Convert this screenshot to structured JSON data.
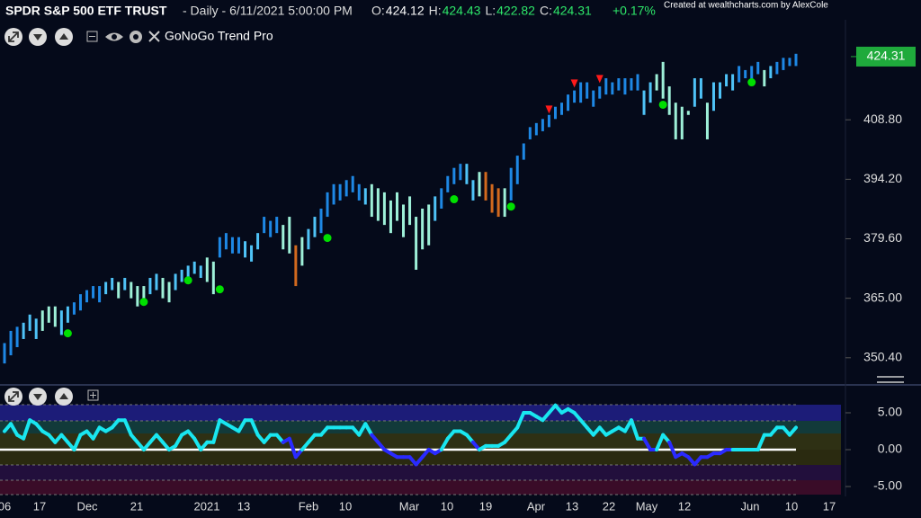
{
  "header": {
    "symbol": "SPDR S&P 500 ETF TRUST",
    "info": "- Daily - 6/11/2021 5:00:00 PM",
    "ohlc": [
      {
        "label": "O:",
        "value": 424.12
      },
      {
        "label": "H:",
        "value": 424.43
      },
      {
        "label": "L:",
        "value": 422.82
      },
      {
        "label": "C:",
        "value": 424.31
      }
    ],
    "change": "+0.17%",
    "watermark": "Created at wealthcharts.com by AlexCole",
    "indicator": "GoNoGo Trend Pro"
  },
  "chart_data": [
    {
      "type": "range_bar",
      "highs": [
        354,
        357,
        358,
        359,
        361,
        360,
        362,
        363,
        363,
        362,
        363,
        364,
        366,
        367,
        368,
        368,
        369,
        370,
        369,
        370,
        369,
        368,
        368,
        370,
        371,
        370,
        369,
        371,
        372,
        373,
        374,
        373,
        375,
        374,
        380,
        381,
        380,
        380,
        379,
        378,
        381,
        385,
        384,
        385,
        383,
        385,
        378,
        380,
        382,
        385,
        387,
        391,
        393,
        393,
        394,
        395,
        393,
        392,
        393,
        392,
        391,
        389,
        391,
        388,
        390,
        385,
        387,
        388,
        390,
        392,
        395,
        397,
        398,
        398,
        394,
        396,
        396,
        393,
        392,
        392,
        397,
        400,
        403,
        407,
        408,
        409,
        410,
        412,
        413,
        415,
        416,
        418,
        418,
        416,
        417,
        419,
        418,
        419,
        419,
        419,
        420,
        416,
        418,
        420,
        423,
        417,
        413,
        412,
        411,
        419,
        419,
        413,
        418,
        418,
        420,
        420,
        422,
        421,
        422,
        423,
        421,
        422,
        423,
        424,
        424,
        425
      ],
      "lows": [
        349,
        351,
        353,
        355,
        357,
        355,
        357,
        359,
        358,
        356,
        359,
        361,
        362,
        364,
        365,
        364,
        366,
        367,
        365,
        367,
        365,
        363,
        364,
        366,
        367,
        365,
        364,
        367,
        369,
        369,
        371,
        370,
        369,
        366,
        375,
        377,
        376,
        376,
        375,
        374,
        377,
        381,
        380,
        381,
        377,
        376,
        368,
        373,
        377,
        380,
        381,
        385,
        388,
        389,
        390,
        391,
        389,
        388,
        385,
        384,
        383,
        381,
        384,
        380,
        383,
        372,
        377,
        378,
        384,
        387,
        391,
        393,
        394,
        393,
        389,
        390,
        389,
        386,
        385,
        385,
        389,
        393,
        399,
        404,
        405,
        406,
        407,
        409,
        410,
        411,
        413,
        413,
        414,
        412,
        414,
        415,
        415,
        416,
        415,
        416,
        416,
        410,
        413,
        416,
        414,
        410,
        404,
        404,
        410,
        412,
        414,
        404,
        411,
        414,
        417,
        416,
        418,
        419,
        418,
        420,
        417,
        419,
        420,
        421,
        422,
        422
      ],
      "colors": [
        "#1e88e5",
        "#1e88e5",
        "#1e88e5",
        "#4fc3f7",
        "#4fc3f7",
        "#4fc3f7",
        "#9ef0d8",
        "#9ef0d8",
        "#9ef0d8",
        "#4fc3f7",
        "#4fc3f7",
        "#1e88e5",
        "#1e88e5",
        "#1e88e5",
        "#1e88e5",
        "#1e88e5",
        "#4fc3f7",
        "#4fc3f7",
        "#9ef0d8",
        "#4fc3f7",
        "#9ef0d8",
        "#9ef0d8",
        "#9ef0d8",
        "#4fc3f7",
        "#4fc3f7",
        "#9ef0d8",
        "#9ef0d8",
        "#4fc3f7",
        "#4fc3f7",
        "#4fc3f7",
        "#4fc3f7",
        "#4fc3f7",
        "#9ef0d8",
        "#9ef0d8",
        "#1e88e5",
        "#1e88e5",
        "#1e88e5",
        "#1e88e5",
        "#4fc3f7",
        "#4fc3f7",
        "#4fc3f7",
        "#1e88e5",
        "#1e88e5",
        "#1e88e5",
        "#9ef0d8",
        "#9ef0d8",
        "#d2691e",
        "#9ef0d8",
        "#4fc3f7",
        "#4fc3f7",
        "#1e88e5",
        "#1e88e5",
        "#1e88e5",
        "#1e88e5",
        "#1e88e5",
        "#1e88e5",
        "#1e88e5",
        "#4fc3f7",
        "#9ef0d8",
        "#9ef0d8",
        "#9ef0d8",
        "#9ef0d8",
        "#9ef0d8",
        "#9ef0d8",
        "#9ef0d8",
        "#9ef0d8",
        "#9ef0d8",
        "#9ef0d8",
        "#4fc3f7",
        "#1e88e5",
        "#1e88e5",
        "#1e88e5",
        "#1e88e5",
        "#4fc3f7",
        "#4fc3f7",
        "#9ef0d8",
        "#d2691e",
        "#d2691e",
        "#d2691e",
        "#9ef0d8",
        "#1e88e5",
        "#1e88e5",
        "#1e88e5",
        "#1e88e5",
        "#1e88e5",
        "#1e88e5",
        "#1e88e5",
        "#1e88e5",
        "#1e88e5",
        "#1e88e5",
        "#1e88e5",
        "#1e88e5",
        "#1e88e5",
        "#1e88e5",
        "#1e88e5",
        "#1e88e5",
        "#1e88e5",
        "#1e88e5",
        "#1e88e5",
        "#1e88e5",
        "#1e88e5",
        "#4fc3f7",
        "#4fc3f7",
        "#9ef0d8",
        "#9ef0d8",
        "#9ef0d8",
        "#9ef0d8",
        "#9ef0d8",
        "#9ef0d8",
        "#4fc3f7",
        "#4fc3f7",
        "#9ef0d8",
        "#4fc3f7",
        "#4fc3f7",
        "#4fc3f7",
        "#4fc3f7",
        "#1e88e5",
        "#1e88e5",
        "#1e88e5",
        "#1e88e5",
        "#9ef0d8",
        "#4fc3f7",
        "#1e88e5",
        "#1e88e5",
        "#1e88e5",
        "#1e88e5"
      ],
      "go_signals": {
        "x": [
          10,
          22,
          29,
          34,
          51,
          71,
          80,
          104,
          118
        ],
        "values": [
          356.4,
          364.1,
          369.4,
          367.2,
          379.8,
          389.3,
          387.5,
          412.5,
          418
        ],
        "color": "#00e000"
      },
      "countertrend": {
        "x": [
          86,
          90,
          94
        ],
        "values": [
          411.2,
          417.6,
          418.7
        ],
        "color": "#ff1a1a"
      },
      "last_value": 424.31,
      "last_color": "#1faa3c",
      "ylim": [
        344.4,
        438.2
      ],
      "yticks": [
        {
          "value": 350.4,
          "label": "350.40"
        },
        {
          "value": 365,
          "label": "365.00"
        },
        {
          "value": 379.6,
          "label": "379.60"
        },
        {
          "value": 394.2,
          "label": "394.20"
        },
        {
          "value": 408.8,
          "label": "408.80"
        }
      ]
    },
    {
      "type": "line",
      "values": [
        2.5,
        3.5,
        2,
        1.5,
        4,
        3.5,
        2.5,
        2,
        1,
        2,
        1,
        0,
        2,
        2.5,
        1.5,
        3,
        2.5,
        3,
        4,
        4,
        2,
        1,
        0,
        1,
        2,
        1,
        0,
        0.5,
        2,
        2.5,
        1.5,
        0,
        1,
        1,
        4,
        3.5,
        3,
        2.5,
        4,
        4,
        2,
        1,
        2,
        2,
        1,
        1.5,
        -1,
        0,
        1,
        2,
        2,
        3,
        3,
        3,
        3,
        3,
        2,
        3.5,
        2,
        1,
        0,
        -0.5,
        -1,
        -1,
        -1,
        -2,
        -1,
        0,
        -0.5,
        0,
        1.5,
        2.5,
        2.5,
        2,
        1,
        0,
        0.5,
        0.5,
        0.5,
        1,
        2,
        3,
        5,
        5,
        4.5,
        4,
        5,
        6,
        5,
        5.5,
        5,
        4,
        3,
        2,
        3,
        2,
        2.5,
        3,
        2.5,
        4,
        1.5,
        1.5,
        0,
        0,
        2,
        1,
        -1,
        -0.5,
        -1,
        -2,
        -1,
        -1,
        -0.5,
        -0.5,
        0,
        0,
        0,
        0,
        0,
        0,
        2,
        2,
        3,
        3,
        2,
        3
      ],
      "colors": [
        "#19e6f0",
        "#19e6f0",
        "#19e6f0",
        "#19e6f0",
        "#19e6f0",
        "#19e6f0",
        "#19e6f0",
        "#19e6f0",
        "#19e6f0",
        "#19e6f0",
        "#19e6f0",
        "#19e6f0",
        "#19e6f0",
        "#19e6f0",
        "#19e6f0",
        "#19e6f0",
        "#19e6f0",
        "#19e6f0",
        "#19e6f0",
        "#19e6f0",
        "#19e6f0",
        "#19e6f0",
        "#19e6f0",
        "#19e6f0",
        "#19e6f0",
        "#19e6f0",
        "#19e6f0",
        "#19e6f0",
        "#19e6f0",
        "#19e6f0",
        "#19e6f0",
        "#19e6f0",
        "#19e6f0",
        "#19e6f0",
        "#19e6f0",
        "#19e6f0",
        "#19e6f0",
        "#19e6f0",
        "#19e6f0",
        "#19e6f0",
        "#19e6f0",
        "#19e6f0",
        "#19e6f0",
        "#19e6f0",
        "#19e6f0",
        "#2a2aff",
        "#2a2aff",
        "#2a2aff",
        "#19e6f0",
        "#19e6f0",
        "#19e6f0",
        "#19e6f0",
        "#19e6f0",
        "#19e6f0",
        "#19e6f0",
        "#19e6f0",
        "#19e6f0",
        "#19e6f0",
        "#19e6f0",
        "#2a2aff",
        "#2a2aff",
        "#2a2aff",
        "#2a2aff",
        "#2a2aff",
        "#2a2aff",
        "#2a2aff",
        "#2a2aff",
        "#2a2aff",
        "#2a2aff",
        "#2a2aff",
        "#19e6f0",
        "#19e6f0",
        "#19e6f0",
        "#19e6f0",
        "#19e6f0",
        "#2a2aff",
        "#19e6f0",
        "#19e6f0",
        "#19e6f0",
        "#19e6f0",
        "#19e6f0",
        "#19e6f0",
        "#19e6f0",
        "#19e6f0",
        "#19e6f0",
        "#19e6f0",
        "#19e6f0",
        "#19e6f0",
        "#19e6f0",
        "#19e6f0",
        "#19e6f0",
        "#19e6f0",
        "#19e6f0",
        "#19e6f0",
        "#19e6f0",
        "#19e6f0",
        "#19e6f0",
        "#19e6f0",
        "#19e6f0",
        "#19e6f0",
        "#19e6f0",
        "#19e6f0",
        "#2a2aff",
        "#2a2aff",
        "#19e6f0",
        "#19e6f0",
        "#2a2aff",
        "#2a2aff",
        "#2a2aff",
        "#2a2aff",
        "#2a2aff",
        "#2a2aff",
        "#2a2aff",
        "#2a2aff",
        "#2a2aff",
        "#2a2aff",
        "#19e6f0",
        "#19e6f0",
        "#19e6f0",
        "#19e6f0",
        "#19e6f0",
        "#19e6f0",
        "#19e6f0",
        "#19e6f0",
        "#19e6f0",
        "#19e6f0"
      ],
      "x_labels": [
        "06",
        "17",
        "Dec",
        "21",
        "2021",
        "13",
        "Feb",
        "10",
        "Mar",
        "10",
        "19",
        "Apr",
        "13",
        "22",
        "May",
        "12",
        "Jun",
        "10",
        "17"
      ],
      "ylim": [
        -6.34,
        6.34
      ],
      "yticks": [
        {
          "value": -5,
          "label": "-5.00"
        },
        {
          "value": 0,
          "label": "0.00"
        },
        {
          "value": 5,
          "label": "5.00"
        }
      ]
    }
  ]
}
